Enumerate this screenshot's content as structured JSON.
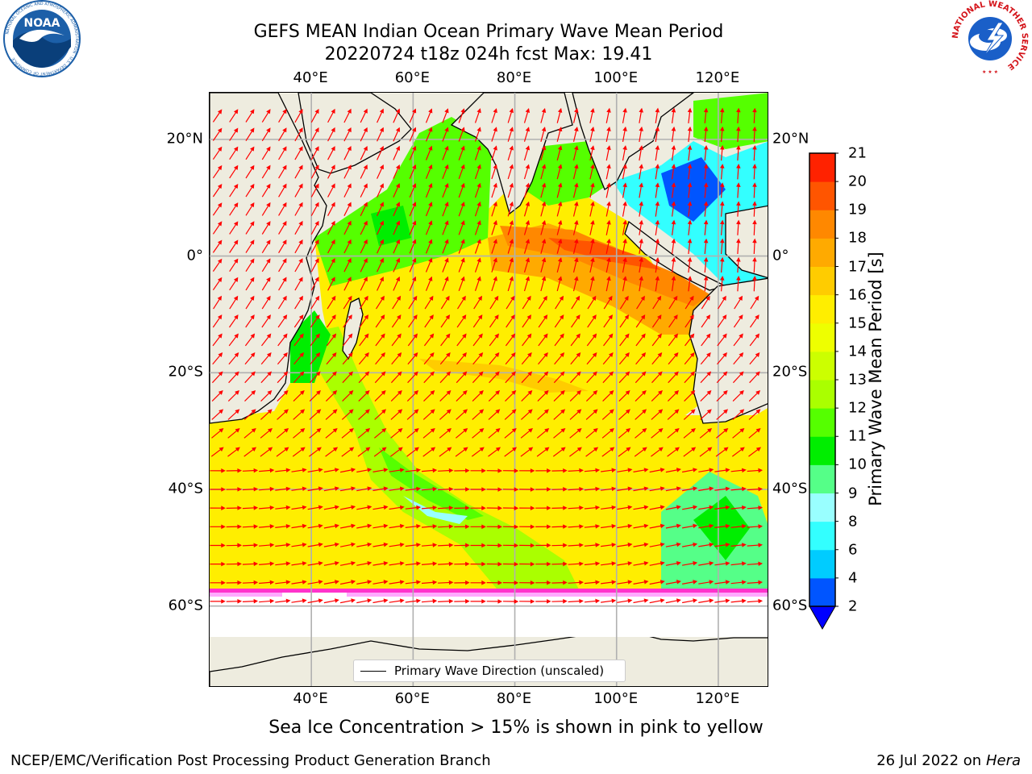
{
  "title": {
    "line1": "GEFS MEAN Indian Ocean Primary Wave Mean Period",
    "line2": "20220724 t18z 024h fcst   Max: 19.41"
  },
  "logos": {
    "left": {
      "name": "NOAA",
      "ring_text": "NATIONAL OCEANIC AND ATMOSPHERIC ADMINISTRATION · U.S. DEPARTMENT OF COMMERCE",
      "color": "#1c5fa8"
    },
    "right": {
      "name": "NATIONAL WEATHER SERVICE",
      "color": "#d4141a"
    }
  },
  "map": {
    "projection": "lat-lon",
    "lon_range": [
      20,
      130
    ],
    "lat_range": [
      -74,
      28
    ],
    "lon_ticks": [
      {
        "value": 40,
        "label": "40°E"
      },
      {
        "value": 60,
        "label": "60°E"
      },
      {
        "value": 80,
        "label": "80°E"
      },
      {
        "value": 100,
        "label": "100°E"
      },
      {
        "value": 120,
        "label": "120°E"
      }
    ],
    "lat_ticks": [
      {
        "value": 20,
        "label": "20°N"
      },
      {
        "value": 0,
        "label": "0°"
      },
      {
        "value": -20,
        "label": "20°S"
      },
      {
        "value": -40,
        "label": "40°S"
      },
      {
        "value": -60,
        "label": "60°S"
      }
    ],
    "grid": true,
    "land_color": "#eeecdf",
    "arrow_color": "#ff0000",
    "legend": {
      "label": "Primary Wave Direction (unscaled)",
      "placement": "bottom-center"
    }
  },
  "colorbar": {
    "label": "Primary Wave Mean Period [s]",
    "tick_labels": [
      "2",
      "4",
      "6",
      "8",
      "9",
      "10",
      "11",
      "12",
      "13",
      "14",
      "15",
      "16",
      "17",
      "18",
      "19",
      "20",
      "21"
    ],
    "colors": [
      "#0055ff",
      "#00ccff",
      "#33ffff",
      "#99ffff",
      "#55ff88",
      "#00ee00",
      "#55ff00",
      "#aaff00",
      "#ccff00",
      "#eeff00",
      "#ffee00",
      "#ffcc00",
      "#ffaa00",
      "#ff8800",
      "#ff5500",
      "#ff2200"
    ],
    "extend_min_color": "#0000ff"
  },
  "caption": "Sea Ice Concentration > 15% is shown in pink to yellow",
  "footer": {
    "left": "NCEP/EMC/Verification Post Processing Product Generation Branch",
    "date": "26 Jul 2022 on ",
    "host": "Hera"
  }
}
